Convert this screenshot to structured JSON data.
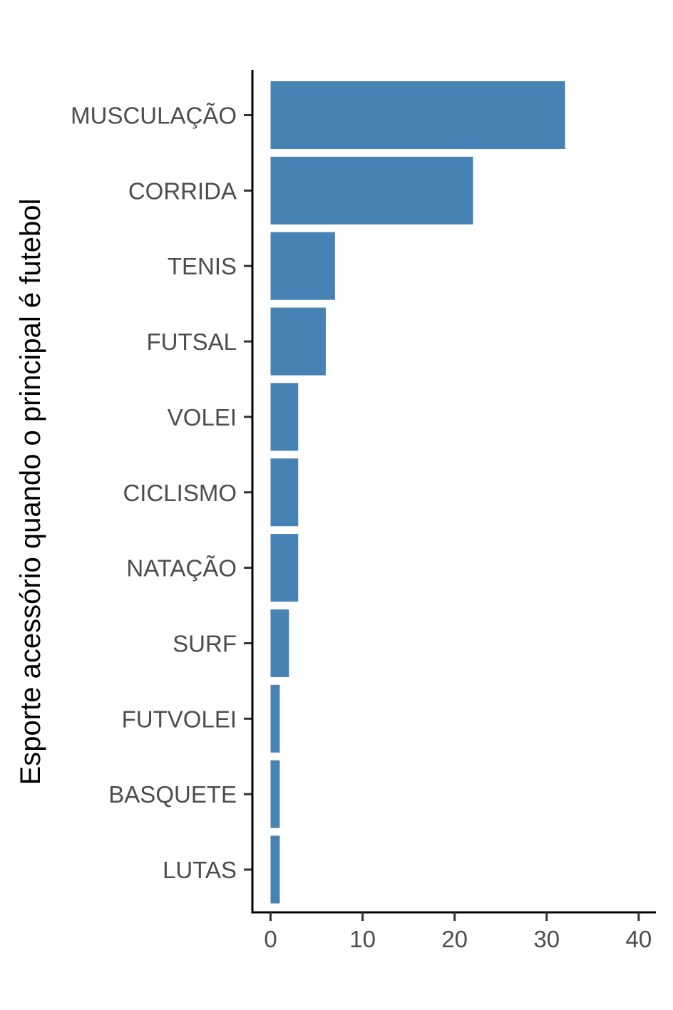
{
  "chart_data": {
    "type": "bar",
    "orientation": "horizontal",
    "categories": [
      "MUSCULAÇÃO",
      "CORRIDA",
      "TENIS",
      "FUTSAL",
      "VOLEI",
      "CICLISMO",
      "NATAÇÃO",
      "SURF",
      "FUTVOLEI",
      "BASQUETE",
      "LUTAS"
    ],
    "values": [
      32,
      22,
      7,
      6,
      3,
      3,
      3,
      2,
      1,
      1,
      1
    ],
    "title": "",
    "xlabel": "",
    "ylabel": "Esporte acessório quando o principal é futebol",
    "xlim": [
      0,
      41
    ],
    "x_ticks": [
      0,
      10,
      20,
      30,
      40
    ],
    "grid": false,
    "legend": "none",
    "bar_color": "#4682B4"
  }
}
